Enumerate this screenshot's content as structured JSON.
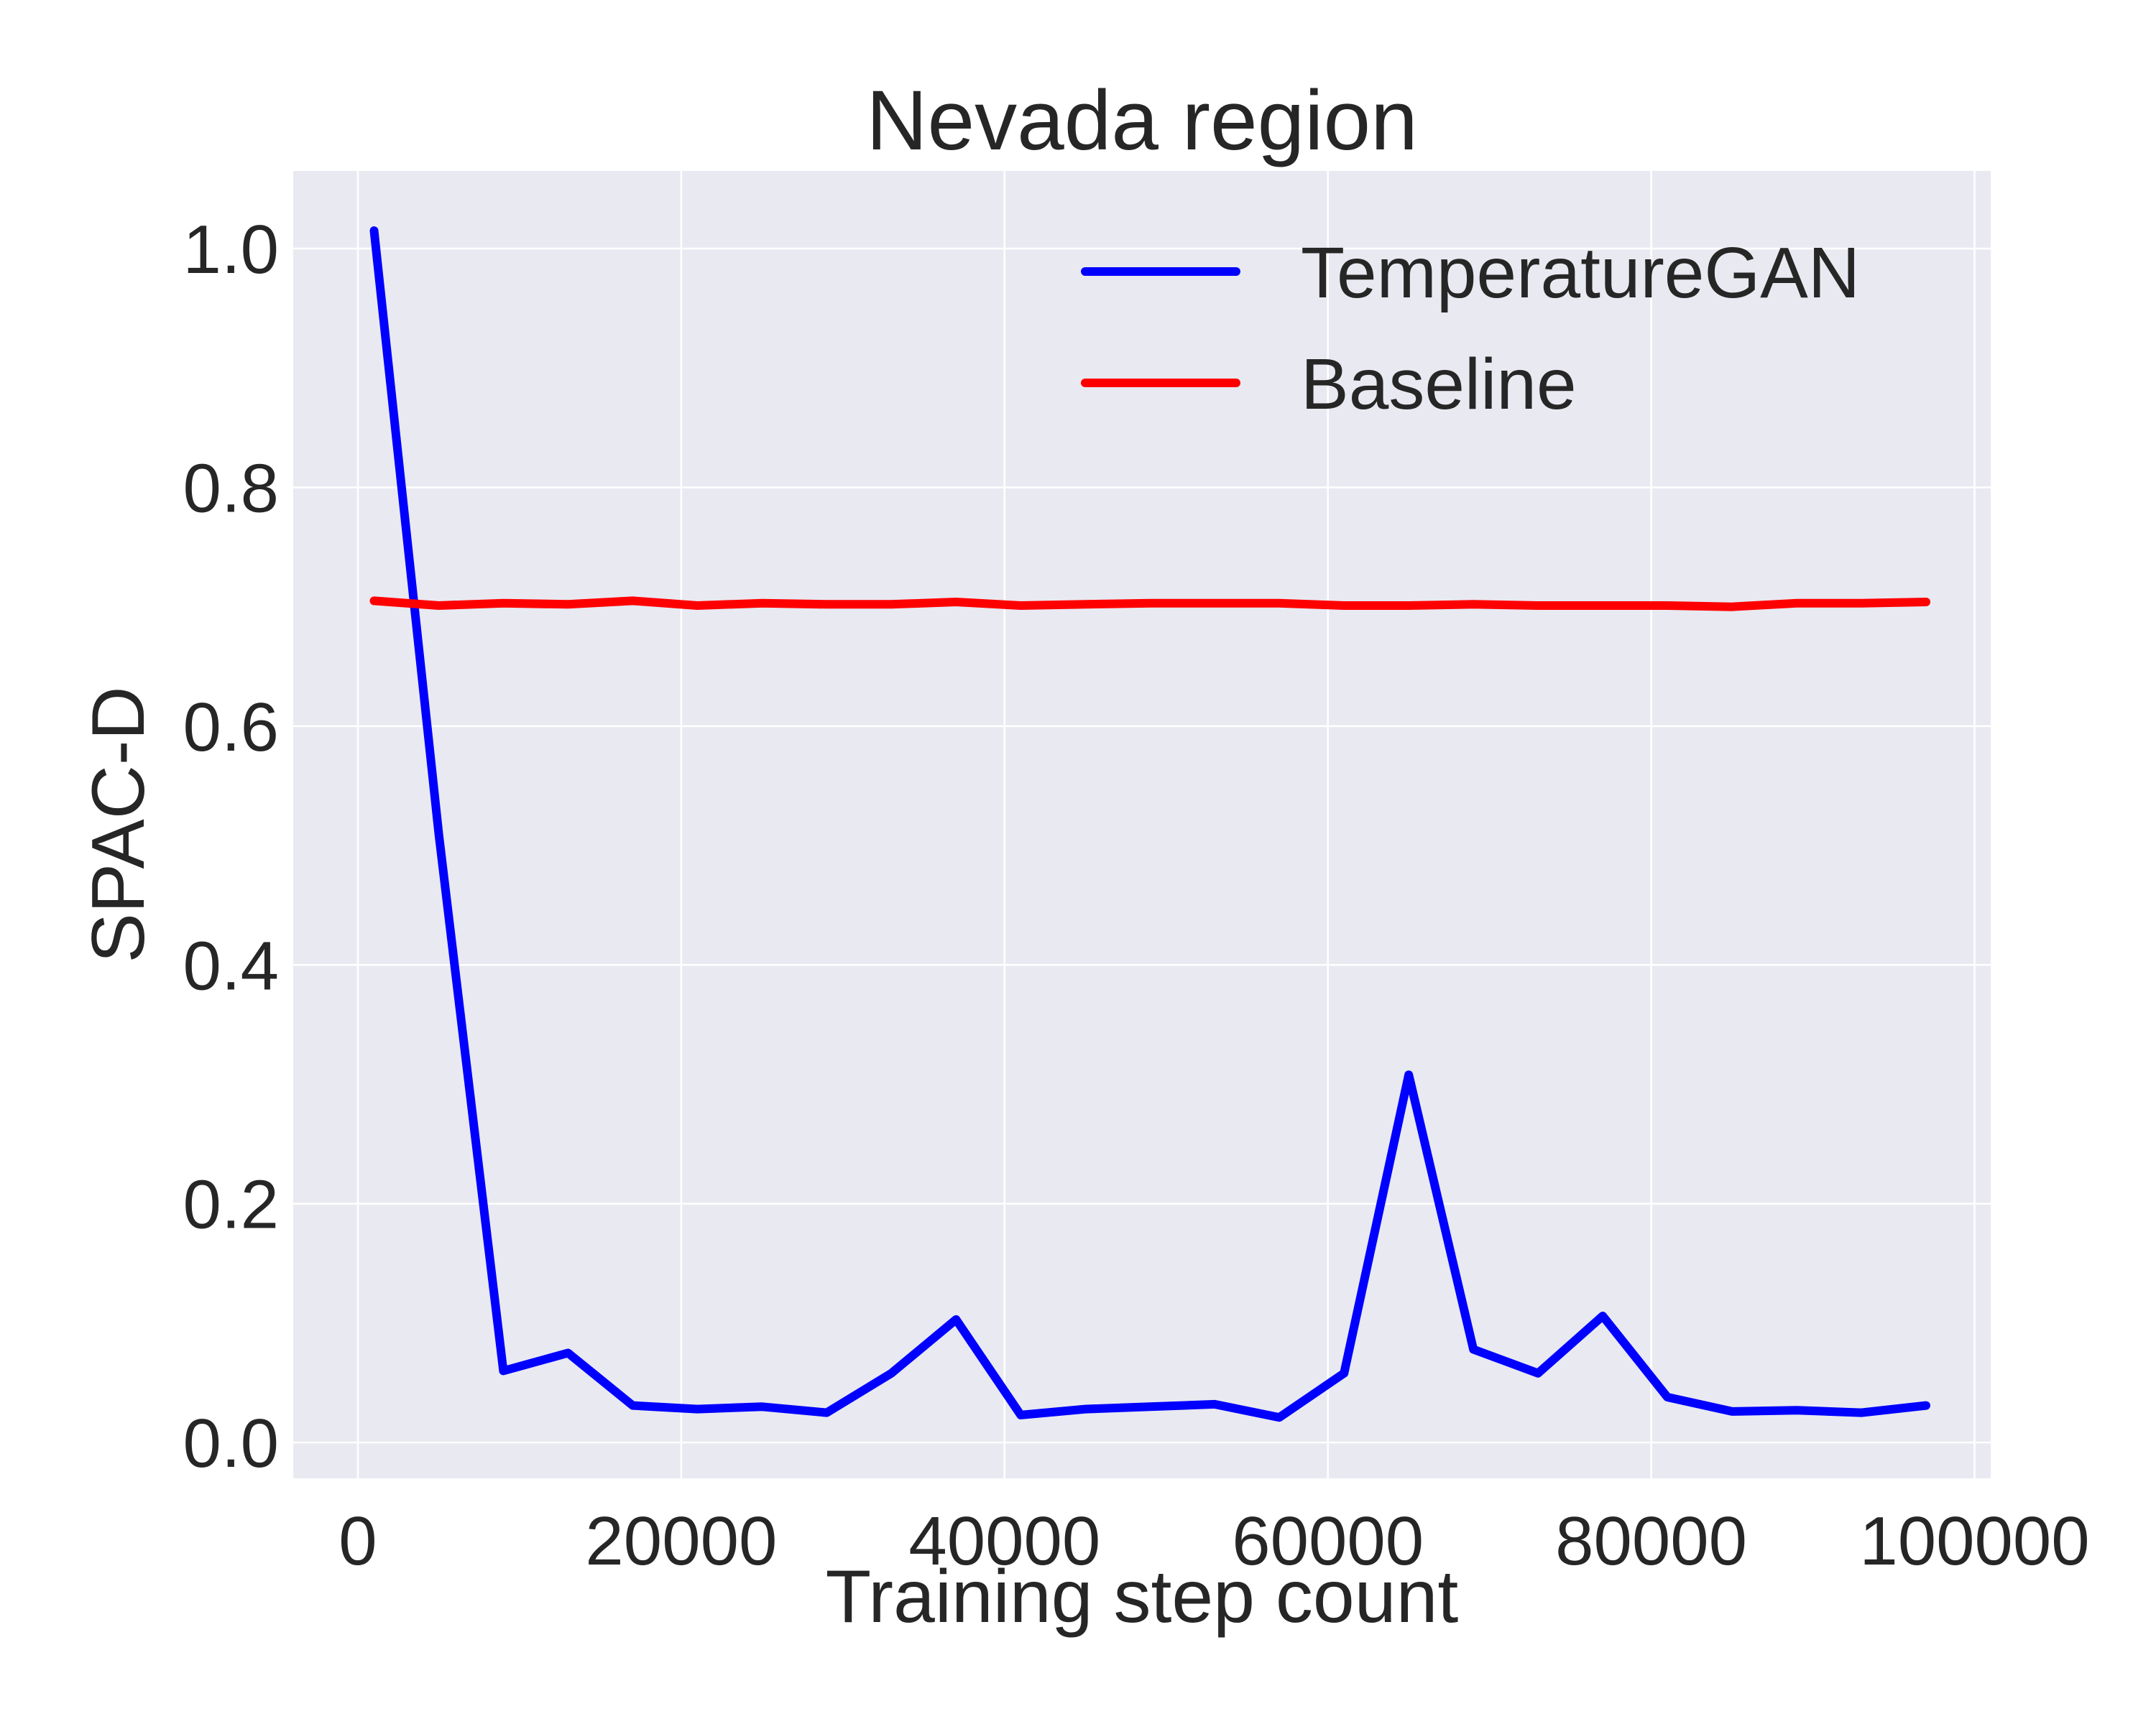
{
  "chart_data": {
    "type": "line",
    "title": "Nevada region",
    "xlabel": "Training step count",
    "ylabel": "SPAC-D",
    "xlim": [
      -4000,
      101000
    ],
    "ylim": [
      -0.03,
      1.065
    ],
    "xticks": [
      0,
      20000,
      40000,
      60000,
      80000,
      100000
    ],
    "xtick_labels": [
      "0",
      "20000",
      "40000",
      "60000",
      "80000",
      "100000"
    ],
    "yticks": [
      0.0,
      0.2,
      0.4,
      0.6,
      0.8,
      1.0
    ],
    "ytick_labels": [
      "0.0",
      "0.2",
      "0.4",
      "0.6",
      "0.8",
      "1.0"
    ],
    "grid": true,
    "legend_position": "top-right",
    "background_color": "#e9e9f1",
    "series": [
      {
        "name": "TemperatureGAN",
        "color": "#0000ff",
        "x": [
          1000,
          5000,
          9000,
          13000,
          17000,
          21000,
          25000,
          29000,
          33000,
          37000,
          41000,
          45000,
          49000,
          53000,
          57000,
          61000,
          65000,
          69000,
          73000,
          77000,
          81000,
          85000,
          89000,
          93000,
          97000
        ],
        "y": [
          1.015,
          0.51,
          0.06,
          0.075,
          0.031,
          0.028,
          0.03,
          0.025,
          0.058,
          0.103,
          0.023,
          0.028,
          0.03,
          0.032,
          0.021,
          0.058,
          0.308,
          0.078,
          0.058,
          0.106,
          0.038,
          0.026,
          0.027,
          0.025,
          0.031
        ]
      },
      {
        "name": "Baseline",
        "color": "#ff0000",
        "x": [
          1000,
          5000,
          9000,
          13000,
          17000,
          21000,
          25000,
          29000,
          33000,
          37000,
          41000,
          45000,
          49000,
          53000,
          57000,
          61000,
          65000,
          69000,
          73000,
          77000,
          81000,
          85000,
          89000,
          93000,
          97000
        ],
        "y": [
          0.705,
          0.701,
          0.703,
          0.702,
          0.705,
          0.701,
          0.703,
          0.702,
          0.702,
          0.704,
          0.701,
          0.702,
          0.703,
          0.703,
          0.703,
          0.701,
          0.701,
          0.702,
          0.701,
          0.701,
          0.701,
          0.7,
          0.703,
          0.703,
          0.704
        ]
      }
    ]
  }
}
